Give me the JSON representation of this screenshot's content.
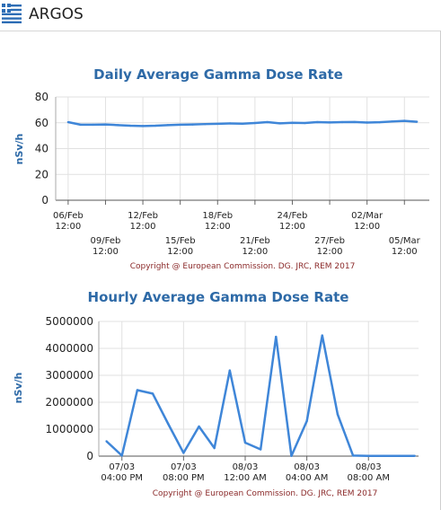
{
  "app": {
    "title": "ARGOS"
  },
  "chart_data": [
    {
      "type": "line",
      "title": "Daily Average Gamma Dose Rate",
      "ylabel": "nSv/h",
      "xlabel": "",
      "ylim": [
        0,
        80
      ],
      "yticks": [
        0,
        20,
        40,
        60,
        80
      ],
      "grid": true,
      "legend": "none",
      "color": "#3f86d8",
      "x_tick_labels_upper": [
        {
          "day": 0,
          "line1": "06/Feb",
          "line2": "12:00"
        },
        {
          "day": 6,
          "line1": "12/Feb",
          "line2": "12:00"
        },
        {
          "day": 12,
          "line1": "18/Feb",
          "line2": "12:00"
        },
        {
          "day": 18,
          "line1": "24/Feb",
          "line2": "12:00"
        },
        {
          "day": 24,
          "line1": "02/Mar",
          "line2": "12:00"
        }
      ],
      "x_tick_labels_lower": [
        {
          "day": 3,
          "line1": "09/Feb",
          "line2": "12:00"
        },
        {
          "day": 9,
          "line1": "15/Feb",
          "line2": "12:00"
        },
        {
          "day": 15,
          "line1": "21/Feb",
          "line2": "12:00"
        },
        {
          "day": 21,
          "line1": "27/Feb",
          "line2": "12:00"
        },
        {
          "day": 27,
          "line1": "05/Mar",
          "line2": "12:00"
        }
      ],
      "x_range": [
        -1,
        29
      ],
      "x": [
        "06/Feb",
        "07/Feb",
        "08/Feb",
        "09/Feb",
        "10/Feb",
        "11/Feb",
        "12/Feb",
        "13/Feb",
        "14/Feb",
        "15/Feb",
        "16/Feb",
        "17/Feb",
        "18/Feb",
        "19/Feb",
        "20/Feb",
        "21/Feb",
        "22/Feb",
        "23/Feb",
        "24/Feb",
        "25/Feb",
        "26/Feb",
        "27/Feb",
        "28/Feb",
        "01/Mar",
        "02/Mar",
        "03/Mar",
        "04/Mar",
        "05/Mar",
        "06/Mar"
      ],
      "values": [
        60.5,
        58.5,
        58.5,
        58.7,
        58.2,
        57.7,
        57.5,
        57.7,
        58.2,
        58.5,
        58.7,
        59,
        59.2,
        59.5,
        59.3,
        59.8,
        60.5,
        59.6,
        60,
        59.8,
        60.5,
        60.3,
        60.5,
        60.6,
        60.2,
        60.4,
        61,
        61.5,
        60.8
      ],
      "copyright": "Copyright @ European Commission. DG. JRC, REM 2017"
    },
    {
      "type": "line",
      "title": "Hourly Average Gamma Dose Rate",
      "ylabel": "nSv/h",
      "xlabel": "",
      "ylim": [
        0,
        5000000
      ],
      "yticks": [
        0,
        1000000,
        2000000,
        3000000,
        4000000,
        5000000
      ],
      "grid": true,
      "legend": "none",
      "color": "#3f86d8",
      "x_tick_labels": [
        {
          "hour": 16,
          "line1": "07/03",
          "line2": "04:00 PM"
        },
        {
          "hour": 20,
          "line1": "07/03",
          "line2": "08:00 PM"
        },
        {
          "hour": 24,
          "line1": "08/03",
          "line2": "12:00 AM"
        },
        {
          "hour": 28,
          "line1": "08/03",
          "line2": "04:00 AM"
        },
        {
          "hour": 32,
          "line1": "08/03",
          "line2": "08:00 AM"
        }
      ],
      "x_range": [
        14.5,
        35.25
      ],
      "x": [
        "07/03 03:00 PM",
        "07/03 04:00 PM",
        "07/03 05:00 PM",
        "07/03 06:00 PM",
        "07/03 07:00 PM",
        "07/03 08:00 PM",
        "07/03 09:00 PM",
        "07/03 10:00 PM",
        "07/03 11:00 PM",
        "08/03 12:00 AM",
        "08/03 01:00 AM",
        "08/03 02:00 AM",
        "08/03 03:00 AM",
        "08/03 04:00 AM",
        "08/03 05:00 AM",
        "08/03 06:00 AM",
        "08/03 07:00 AM",
        "08/03 08:00 AM",
        "08/03 09:00 AM",
        "08/03 10:00 AM",
        "08/03 11:00 AM"
      ],
      "x_hours": [
        15,
        16,
        17,
        18,
        19,
        20,
        21,
        22,
        23,
        24,
        25,
        26,
        27,
        28,
        29,
        30,
        31,
        32,
        33,
        34,
        35
      ],
      "values": [
        550000,
        20000,
        2450000,
        2320000,
        1200000,
        120000,
        1100000,
        300000,
        3180000,
        500000,
        250000,
        4430000,
        10000,
        1300000,
        4480000,
        1550000,
        20000,
        10000,
        10000,
        10000,
        10000
      ],
      "copyright": "Copyright @ European Commission. DG. JRC, REM 2017"
    }
  ]
}
